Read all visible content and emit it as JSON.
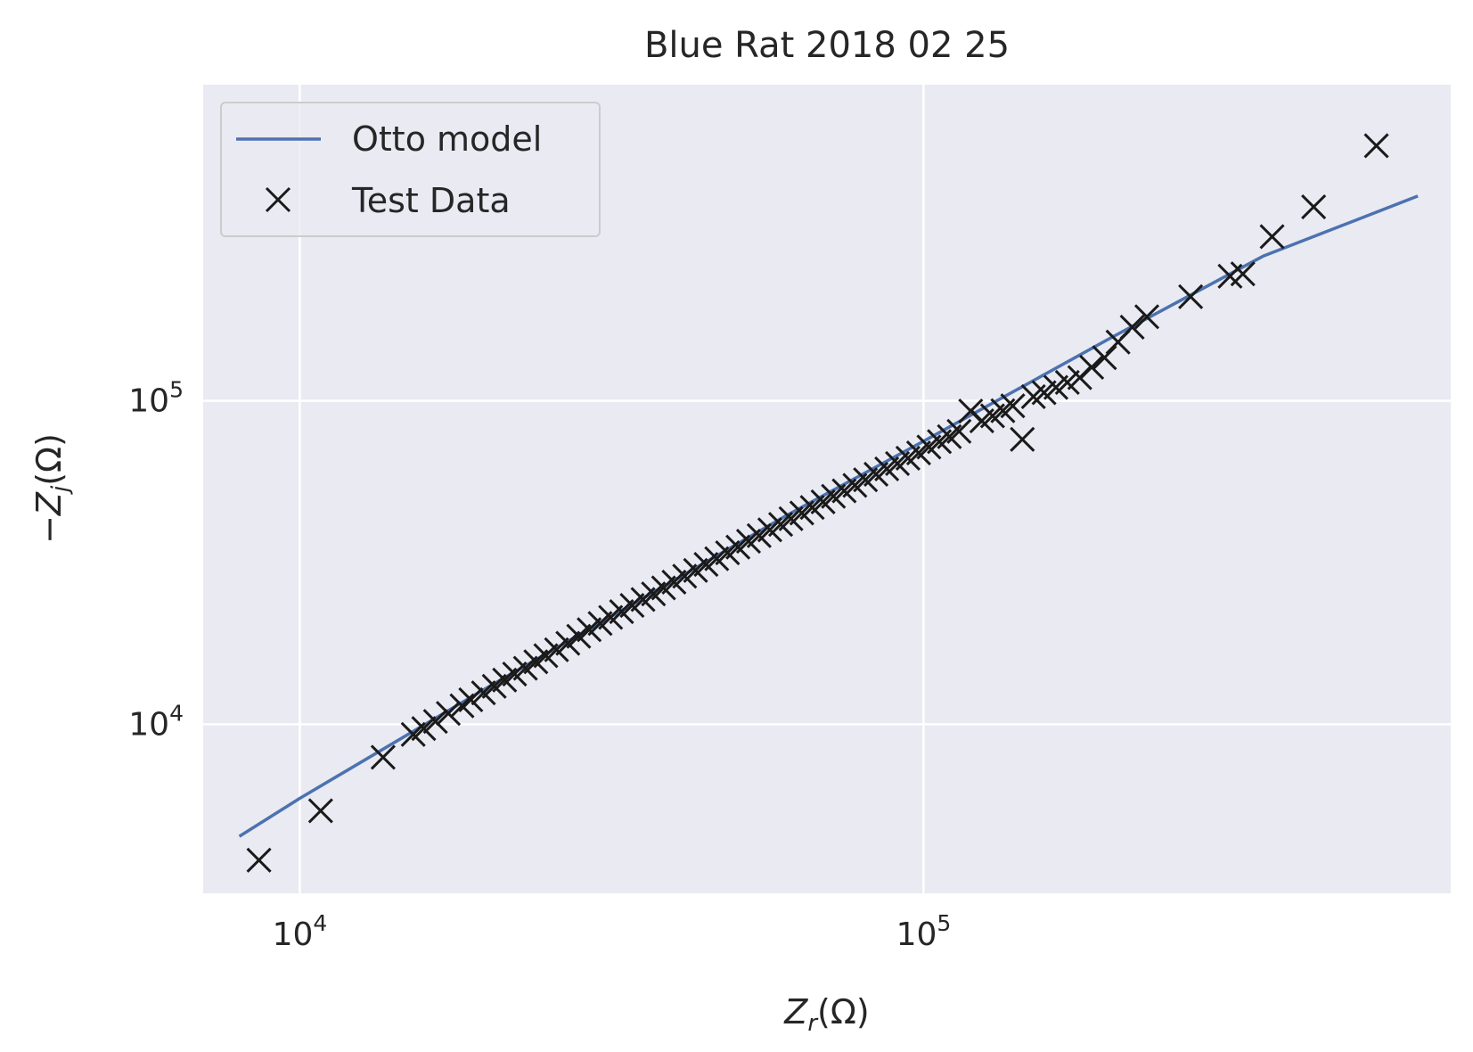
{
  "chart_data": {
    "type": "scatter",
    "title": "Blue Rat 2018 02 25",
    "xlabel": "Z_r(Ω)",
    "ylabel": "−Z_j(Ω)",
    "xscale": "log",
    "yscale": "log",
    "xlim": [
      7000,
      700000
    ],
    "ylim": [
      3000,
      950000
    ],
    "x_ticks": [
      {
        "base": "10",
        "exp": "4",
        "value": 10000
      },
      {
        "base": "10",
        "exp": "5",
        "value": 100000
      }
    ],
    "y_ticks": [
      {
        "base": "10",
        "exp": "4",
        "value": 10000
      },
      {
        "base": "10",
        "exp": "5",
        "value": 100000
      }
    ],
    "grid": true,
    "legend_position": "top-left",
    "colors": {
      "background": "#eaeaf2",
      "grid": "#ffffff",
      "model": "#4c72b0",
      "markers": "#1a1a1a"
    },
    "series": [
      {
        "name": "Otto model",
        "kind": "line",
        "x": [
          8000,
          10000,
          20000,
          40000,
          60000,
          100000,
          200000,
          350000,
          620000
        ],
        "y": [
          4500,
          5900,
          13000,
          28000,
          44000,
          75000,
          157000,
          280000,
          430000
        ]
      },
      {
        "name": "Test Data",
        "kind": "markers",
        "x": [
          8600,
          10800,
          13600,
          15200,
          15800,
          16500,
          17300,
          18200,
          18800,
          19700,
          20500,
          21300,
          22100,
          23000,
          23900,
          24800,
          25800,
          26900,
          28000,
          29100,
          30300,
          31500,
          32800,
          34100,
          35500,
          36900,
          38300,
          39800,
          41400,
          43100,
          44800,
          46600,
          48500,
          50400,
          52400,
          54500,
          56700,
          59000,
          61300,
          63800,
          66300,
          69000,
          71700,
          74600,
          77600,
          80700,
          83900,
          87300,
          90800,
          94400,
          98200,
          102000,
          106000,
          110000,
          114000,
          119000,
          124000,
          129000,
          134000,
          139000,
          144000,
          150000,
          156000,
          163000,
          170000,
          178000,
          186000,
          195000,
          205000,
          216000,
          228000,
          268000,
          310000,
          325000,
          362000,
          422000,
          532000
        ],
        "y": [
          3800,
          5400,
          7900,
          9300,
          9700,
          10200,
          10800,
          11400,
          11900,
          12500,
          13100,
          13700,
          14300,
          14900,
          15600,
          16300,
          17000,
          17800,
          18700,
          19600,
          20500,
          21400,
          22300,
          23300,
          24300,
          25300,
          26400,
          27500,
          28700,
          29900,
          31200,
          32500,
          33900,
          35300,
          36800,
          38300,
          39900,
          41500,
          43200,
          45000,
          46800,
          48700,
          50700,
          52700,
          54800,
          57000,
          59300,
          61600,
          64000,
          66500,
          69000,
          72000,
          74800,
          77500,
          80500,
          93000,
          86700,
          89900,
          93200,
          96500,
          76000,
          103000,
          106000,
          110000,
          114000,
          118000,
          127000,
          136000,
          152000,
          169000,
          182000,
          210000,
          243000,
          247000,
          322000,
          398000,
          615000
        ]
      }
    ]
  }
}
